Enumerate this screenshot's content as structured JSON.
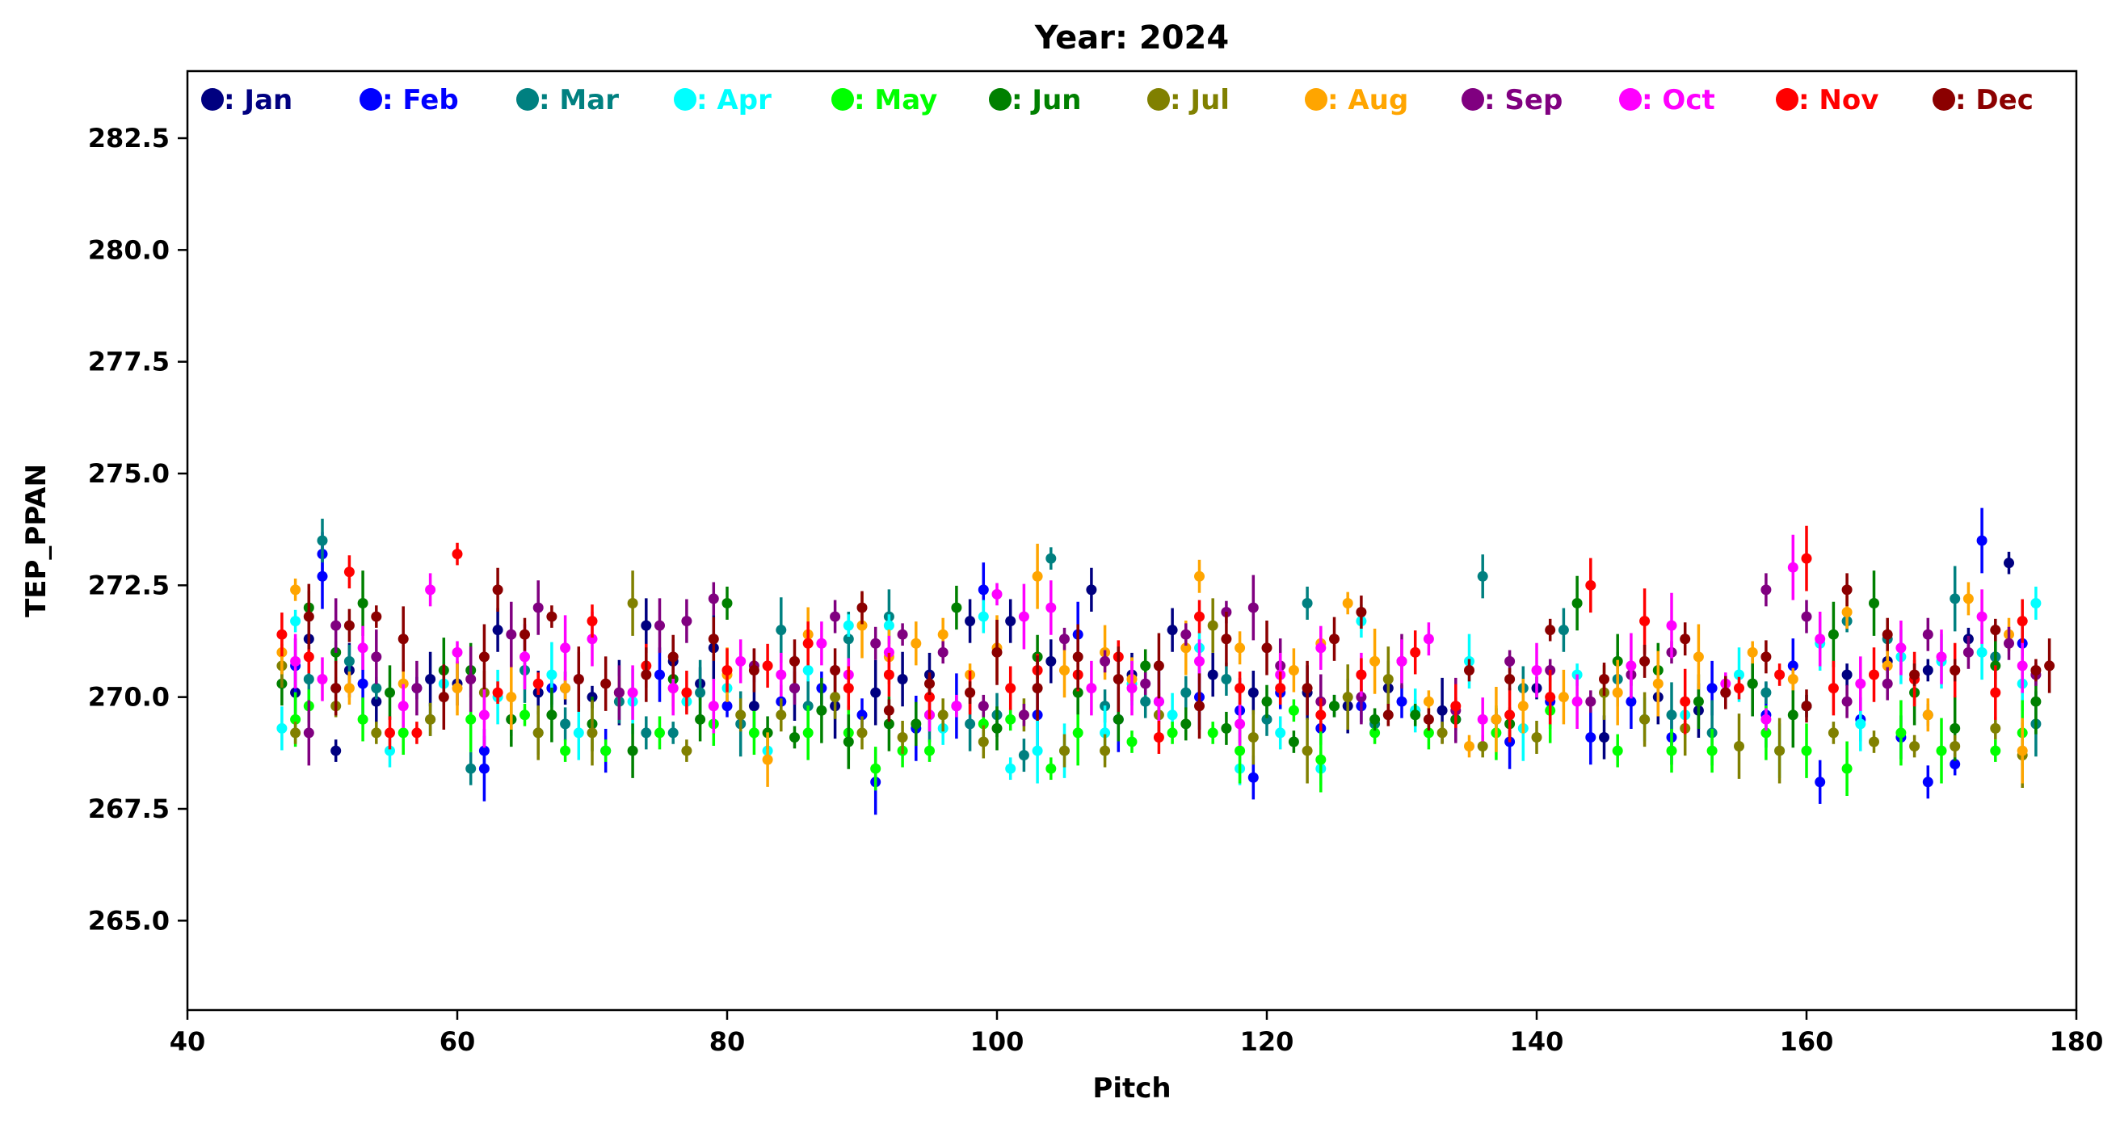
{
  "chart_data": {
    "type": "scatter",
    "title": "Year: 2024",
    "xlabel": "Pitch",
    "ylabel": "TEP_PPAN",
    "xlim": [
      40,
      180
    ],
    "ylim": [
      263,
      284
    ],
    "xticks": [
      "40",
      "60",
      "80",
      "100",
      "120",
      "140",
      "160",
      "180"
    ],
    "yticks": [
      "265.0",
      "267.5",
      "270.0",
      "272.5",
      "275.0",
      "277.5",
      "280.0",
      "282.5"
    ],
    "grid": false,
    "legend_position": "top",
    "error_bars": true,
    "series": [
      {
        "name": ": Jan",
        "color": "#000080",
        "x": [
          48,
          49,
          51,
          52,
          54,
          58,
          60,
          63,
          66,
          68,
          70,
          72,
          74,
          76,
          78,
          79,
          82,
          85,
          88,
          91,
          93,
          95,
          98,
          101,
          104,
          107,
          110,
          113,
          116,
          119,
          123,
          126,
          129,
          133,
          137,
          140,
          145,
          149,
          152,
          156,
          160,
          163,
          166,
          169,
          172,
          175
        ],
        "y": [
          270.1,
          271.3,
          268.8,
          270.6,
          269.9,
          270.4,
          270.3,
          271.5,
          270.1,
          270.2,
          270.0,
          270.1,
          271.6,
          270.8,
          270.3,
          271.1,
          269.8,
          270.2,
          269.8,
          270.1,
          270.4,
          270.5,
          271.7,
          271.7,
          270.8,
          272.4,
          270.5,
          271.5,
          270.5,
          270.1,
          270.1,
          269.8,
          270.2,
          269.7,
          269.5,
          270.2,
          269.1,
          270.0,
          269.7,
          270.3,
          269.8,
          270.5,
          270.8,
          270.6,
          271.3,
          273.0
        ]
      },
      {
        "name": ": Feb",
        "color": "#0000ff",
        "x": [
          48,
          50,
          50,
          53,
          57,
          62,
          62,
          67,
          71,
          75,
          80,
          84,
          87,
          90,
          91,
          94,
          97,
          99,
          103,
          106,
          109,
          112,
          115,
          118,
          119,
          121,
          124,
          127,
          130,
          134,
          138,
          141,
          144,
          147,
          150,
          153,
          157,
          159,
          161,
          164,
          167,
          169,
          171,
          173,
          174,
          176
        ],
        "y": [
          270.7,
          273.2,
          272.7,
          270.3,
          270.2,
          268.8,
          268.4,
          270.2,
          268.8,
          270.5,
          269.8,
          269.9,
          270.2,
          269.6,
          268.1,
          269.3,
          269.8,
          272.4,
          269.6,
          271.4,
          269.5,
          269.9,
          270.0,
          269.7,
          268.2,
          270.1,
          269.3,
          269.8,
          269.9,
          269.5,
          269.0,
          269.9,
          269.1,
          269.9,
          269.1,
          270.2,
          269.6,
          270.7,
          268.1,
          269.5,
          269.1,
          268.1,
          268.5,
          273.5,
          270.9,
          271.2
        ]
      },
      {
        "name": ": Mar",
        "color": "#008080",
        "x": [
          49,
          50,
          52,
          54,
          58,
          61,
          64,
          65,
          66,
          68,
          72,
          74,
          76,
          78,
          81,
          84,
          86,
          89,
          92,
          95,
          98,
          100,
          102,
          104,
          108,
          111,
          114,
          117,
          120,
          123,
          125,
          128,
          131,
          136,
          139,
          142,
          146,
          150,
          153,
          157,
          160,
          163,
          166,
          169,
          171,
          174,
          177
        ],
        "y": [
          270.4,
          273.5,
          270.8,
          270.2,
          269.5,
          268.4,
          269.5,
          270.6,
          269.2,
          269.4,
          269.9,
          269.2,
          269.2,
          270.1,
          269.4,
          271.5,
          269.8,
          271.3,
          271.8,
          269.6,
          269.4,
          269.6,
          268.7,
          273.1,
          269.8,
          269.9,
          270.1,
          270.4,
          269.5,
          272.1,
          269.8,
          269.4,
          269.7,
          272.7,
          270.2,
          271.5,
          270.4,
          269.6,
          269.2,
          270.1,
          269.8,
          271.7,
          271.3,
          269.6,
          272.2,
          270.9,
          269.4
        ]
      },
      {
        "name": ": Apr",
        "color": "#00ffff",
        "x": [
          47,
          48,
          51,
          55,
          59,
          63,
          67,
          69,
          73,
          77,
          80,
          83,
          86,
          89,
          92,
          96,
          99,
          101,
          103,
          105,
          108,
          110,
          113,
          115,
          118,
          121,
          124,
          127,
          131,
          135,
          139,
          143,
          148,
          151,
          155,
          158,
          161,
          164,
          167,
          170,
          173,
          176,
          177
        ],
        "y": [
          269.3,
          271.7,
          270.2,
          268.8,
          270.3,
          270.0,
          270.5,
          269.2,
          269.9,
          269.9,
          270.2,
          268.8,
          270.6,
          271.6,
          271.6,
          269.3,
          271.8,
          268.4,
          268.8,
          268.8,
          269.2,
          270.3,
          269.6,
          271.1,
          268.4,
          269.2,
          268.4,
          271.7,
          269.7,
          270.8,
          269.3,
          270.5,
          269.5,
          269.6,
          270.5,
          268.8,
          271.2,
          269.4,
          270.9,
          270.8,
          271.0,
          270.3,
          272.1
        ]
      },
      {
        "name": ": May",
        "color": "#00ff00",
        "x": [
          48,
          49,
          53,
          56,
          61,
          65,
          68,
          71,
          75,
          79,
          82,
          86,
          89,
          91,
          93,
          95,
          99,
          101,
          104,
          106,
          110,
          113,
          116,
          118,
          122,
          124,
          128,
          132,
          137,
          141,
          146,
          150,
          153,
          157,
          160,
          163,
          167,
          170,
          174,
          176
        ],
        "y": [
          269.5,
          269.8,
          269.5,
          269.2,
          269.5,
          269.6,
          268.8,
          268.8,
          269.2,
          269.4,
          269.2,
          269.2,
          269.2,
          268.4,
          268.8,
          268.8,
          269.4,
          269.5,
          268.4,
          269.2,
          269.0,
          269.2,
          269.2,
          268.8,
          269.7,
          268.6,
          269.2,
          269.2,
          269.2,
          269.7,
          268.8,
          268.8,
          268.8,
          269.2,
          268.8,
          268.4,
          269.2,
          268.8,
          268.8,
          269.2
        ]
      },
      {
        "name": ": Jun",
        "color": "#008000",
        "x": [
          47,
          49,
          51,
          53,
          55,
          59,
          61,
          64,
          67,
          70,
          73,
          76,
          78,
          80,
          83,
          85,
          87,
          89,
          92,
          94,
          97,
          100,
          103,
          106,
          109,
          111,
          114,
          117,
          120,
          122,
          125,
          128,
          131,
          134,
          138,
          143,
          146,
          149,
          152,
          156,
          159,
          162,
          165,
          168,
          171,
          174,
          177
        ],
        "y": [
          270.3,
          272.0,
          271.0,
          272.1,
          270.1,
          270.6,
          270.6,
          269.5,
          269.6,
          269.4,
          268.8,
          270.4,
          269.5,
          272.1,
          269.2,
          269.1,
          269.7,
          269.0,
          269.4,
          269.4,
          272.0,
          269.3,
          270.9,
          270.1,
          269.5,
          270.7,
          269.4,
          269.3,
          269.9,
          269.0,
          269.8,
          269.5,
          269.6,
          269.5,
          269.4,
          272.1,
          270.8,
          270.6,
          269.9,
          270.3,
          269.6,
          271.4,
          272.1,
          270.1,
          269.3,
          270.7,
          269.9
        ]
      },
      {
        "name": ": Jul",
        "color": "#808000",
        "x": [
          47,
          48,
          51,
          54,
          58,
          62,
          66,
          70,
          73,
          77,
          81,
          84,
          88,
          90,
          93,
          96,
          99,
          102,
          105,
          108,
          112,
          116,
          119,
          123,
          126,
          129,
          133,
          136,
          140,
          145,
          148,
          151,
          155,
          158,
          162,
          165,
          168,
          171,
          174,
          176
        ],
        "y": [
          270.7,
          269.2,
          269.8,
          269.2,
          269.5,
          270.1,
          269.2,
          269.2,
          272.1,
          268.8,
          269.6,
          269.6,
          270.0,
          269.2,
          269.1,
          269.6,
          269.0,
          269.6,
          268.8,
          268.8,
          269.6,
          271.6,
          269.1,
          268.8,
          270.0,
          270.4,
          269.2,
          268.9,
          269.1,
          270.1,
          269.5,
          269.3,
          268.9,
          268.8,
          269.2,
          269.0,
          268.9,
          268.9,
          269.3,
          268.7
        ]
      },
      {
        "name": ": Aug",
        "color": "#ffa500",
        "x": [
          47,
          48,
          52,
          56,
          60,
          64,
          68,
          72,
          76,
          80,
          83,
          86,
          90,
          92,
          94,
          96,
          98,
          100,
          103,
          105,
          108,
          110,
          114,
          115,
          118,
          122,
          124,
          126,
          128,
          132,
          135,
          137,
          139,
          142,
          146,
          149,
          152,
          156,
          159,
          163,
          166,
          169,
          172,
          175,
          176
        ],
        "y": [
          271.0,
          272.4,
          270.2,
          270.3,
          270.2,
          270.0,
          270.2,
          270.1,
          270.2,
          270.5,
          268.6,
          271.4,
          271.6,
          270.9,
          271.2,
          271.4,
          270.5,
          271.1,
          272.7,
          270.6,
          271.0,
          270.4,
          271.1,
          272.7,
          271.1,
          270.6,
          271.2,
          272.1,
          270.8,
          269.9,
          268.9,
          269.5,
          269.8,
          270.0,
          270.1,
          270.3,
          270.9,
          271.0,
          270.4,
          271.9,
          270.7,
          269.6,
          272.2,
          271.4,
          268.8
        ]
      },
      {
        "name": ": Sep",
        "color": "#800080",
        "x": [
          49,
          51,
          54,
          57,
          61,
          64,
          66,
          69,
          72,
          75,
          77,
          79,
          82,
          85,
          88,
          91,
          93,
          96,
          99,
          102,
          105,
          108,
          111,
          114,
          117,
          119,
          121,
          124,
          127,
          130,
          134,
          138,
          141,
          144,
          147,
          150,
          154,
          157,
          160,
          163,
          166,
          169,
          172,
          175,
          177
        ],
        "y": [
          269.2,
          271.6,
          270.9,
          270.2,
          270.4,
          271.4,
          272.0,
          270.4,
          270.1,
          271.6,
          271.7,
          272.2,
          270.7,
          270.2,
          271.8,
          271.2,
          271.4,
          271.0,
          269.8,
          269.6,
          271.3,
          270.8,
          270.3,
          271.4,
          271.9,
          272.0,
          270.7,
          269.9,
          270.0,
          270.8,
          269.7,
          270.8,
          270.6,
          269.9,
          270.5,
          271.0,
          270.1,
          272.4,
          271.8,
          269.9,
          270.3,
          271.4,
          271.0,
          271.2,
          270.5
        ]
      },
      {
        "name": ": Oct",
        "color": "#ff00ff",
        "x": [
          48,
          50,
          53,
          56,
          58,
          60,
          62,
          65,
          68,
          70,
          73,
          76,
          79,
          81,
          84,
          87,
          89,
          92,
          95,
          97,
          100,
          102,
          104,
          107,
          110,
          112,
          115,
          118,
          121,
          124,
          127,
          130,
          132,
          136,
          140,
          143,
          147,
          150,
          154,
          157,
          159,
          161,
          164,
          167,
          170,
          173,
          176
        ],
        "y": [
          270.8,
          270.4,
          271.1,
          269.8,
          272.4,
          271.0,
          269.6,
          270.9,
          271.1,
          271.3,
          270.1,
          270.2,
          269.8,
          270.8,
          270.5,
          271.2,
          270.5,
          271.0,
          269.6,
          269.8,
          272.3,
          271.8,
          272.0,
          270.2,
          270.2,
          269.9,
          270.8,
          269.4,
          270.5,
          271.1,
          270.5,
          270.8,
          271.3,
          269.5,
          270.6,
          269.9,
          270.7,
          271.6,
          270.3,
          269.5,
          272.9,
          271.3,
          270.3,
          271.1,
          270.9,
          271.8,
          270.7
        ]
      },
      {
        "name": ": Nov",
        "color": "#ff0000",
        "x": [
          47,
          49,
          52,
          55,
          57,
          60,
          63,
          66,
          70,
          74,
          77,
          80,
          83,
          86,
          89,
          92,
          95,
          98,
          101,
          103,
          106,
          109,
          112,
          115,
          118,
          121,
          124,
          127,
          131,
          134,
          138,
          141,
          144,
          148,
          151,
          155,
          158,
          160,
          162,
          165,
          168,
          171,
          174,
          176
        ],
        "y": [
          271.4,
          270.9,
          272.8,
          269.2,
          269.2,
          273.2,
          270.1,
          270.3,
          271.7,
          270.7,
          270.1,
          270.6,
          270.7,
          271.2,
          270.2,
          270.5,
          270.0,
          270.1,
          270.2,
          270.6,
          270.5,
          270.9,
          269.1,
          271.8,
          270.2,
          270.2,
          269.6,
          270.5,
          271.0,
          269.8,
          269.6,
          270.0,
          272.5,
          271.7,
          269.9,
          270.2,
          270.5,
          273.1,
          270.2,
          270.5,
          270.4,
          270.6,
          270.1,
          271.7
        ]
      },
      {
        "name": ": Dec",
        "color": "#8b0000",
        "x": [
          49,
          51,
          52,
          54,
          56,
          59,
          62,
          63,
          65,
          67,
          69,
          71,
          74,
          76,
          79,
          82,
          85,
          88,
          90,
          92,
          95,
          98,
          100,
          103,
          106,
          109,
          112,
          115,
          117,
          120,
          123,
          125,
          127,
          129,
          132,
          135,
          138,
          141,
          145,
          148,
          151,
          154,
          157,
          160,
          163,
          166,
          168,
          171,
          174,
          177,
          178
        ],
        "y": [
          271.8,
          270.2,
          271.6,
          271.8,
          271.3,
          270.0,
          270.9,
          272.4,
          271.4,
          271.8,
          270.4,
          270.3,
          270.5,
          270.9,
          271.3,
          270.6,
          270.8,
          270.6,
          272.0,
          269.7,
          270.3,
          270.1,
          271.0,
          270.2,
          270.9,
          270.4,
          270.7,
          269.8,
          271.3,
          271.1,
          270.2,
          271.3,
          271.9,
          269.6,
          269.5,
          270.6,
          270.4,
          271.5,
          270.4,
          270.8,
          271.3,
          270.1,
          270.9,
          269.8,
          272.4,
          271.4,
          270.5,
          270.6,
          271.5,
          270.6,
          270.7
        ]
      }
    ]
  }
}
